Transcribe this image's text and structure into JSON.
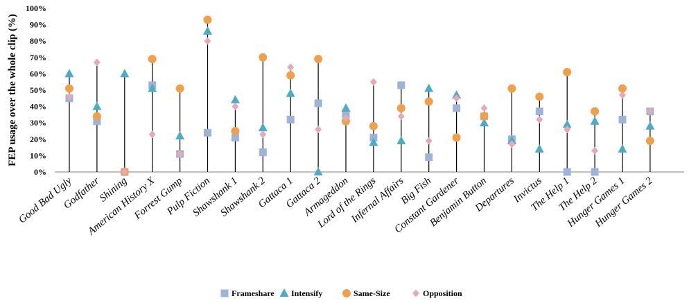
{
  "chart_data": {
    "type": "scatter",
    "ylabel": "FEP usage over the whole clip (%)",
    "ylim": [
      0,
      100
    ],
    "yticks": [
      "0%",
      "10%",
      "20%",
      "30%",
      "40%",
      "50%",
      "60%",
      "70%",
      "80%",
      "90%",
      "100%"
    ],
    "grid": false,
    "legend_position": "bottom",
    "categories": [
      "Good Bad Ugly",
      "Godfather",
      "Shining",
      "American History X",
      "Forrest Gump",
      "Pulp Fiction",
      "Shawshank 1",
      "Shawshank 2",
      "Gattaca 1",
      "Gattaca 2",
      "Armageddon",
      "Lord of the Rings",
      "Infernal Affairs",
      "Big Fish",
      "Constant Gardener",
      "Benjamin Button",
      "Departures",
      "Invictus",
      "The Help 1",
      "The Help 2",
      "Hunger Games 1",
      "Hunger Games 2"
    ],
    "series": [
      {
        "name": "Frameshare",
        "marker": "square",
        "color": "#9db3d8",
        "values": [
          45,
          31,
          0,
          53,
          11,
          24,
          21,
          12,
          32,
          42,
          35,
          21,
          53,
          9,
          39,
          34,
          20,
          37,
          0,
          0,
          32,
          37
        ]
      },
      {
        "name": "Intensify",
        "marker": "triangle",
        "color": "#4bacc6",
        "values": [
          60,
          40,
          60,
          51,
          22,
          86,
          44,
          27,
          48,
          0,
          39,
          18,
          19,
          51,
          47,
          30,
          19,
          14,
          29,
          31,
          14,
          28
        ]
      },
      {
        "name": "Same-Size",
        "marker": "circle",
        "color": "#f0a04b",
        "values": [
          51,
          34,
          0,
          69,
          51,
          93,
          25,
          70,
          59,
          69,
          31,
          28,
          39,
          43,
          21,
          34,
          51,
          46,
          61,
          37,
          51,
          19
        ]
      },
      {
        "name": "Opposition",
        "marker": "diamond",
        "color": "#e6a9b8",
        "values": [
          46,
          67,
          0,
          23,
          11,
          80,
          40,
          23,
          64,
          26,
          33,
          55,
          34,
          19,
          45,
          39,
          17,
          32,
          26,
          13,
          47,
          37
        ]
      }
    ]
  }
}
